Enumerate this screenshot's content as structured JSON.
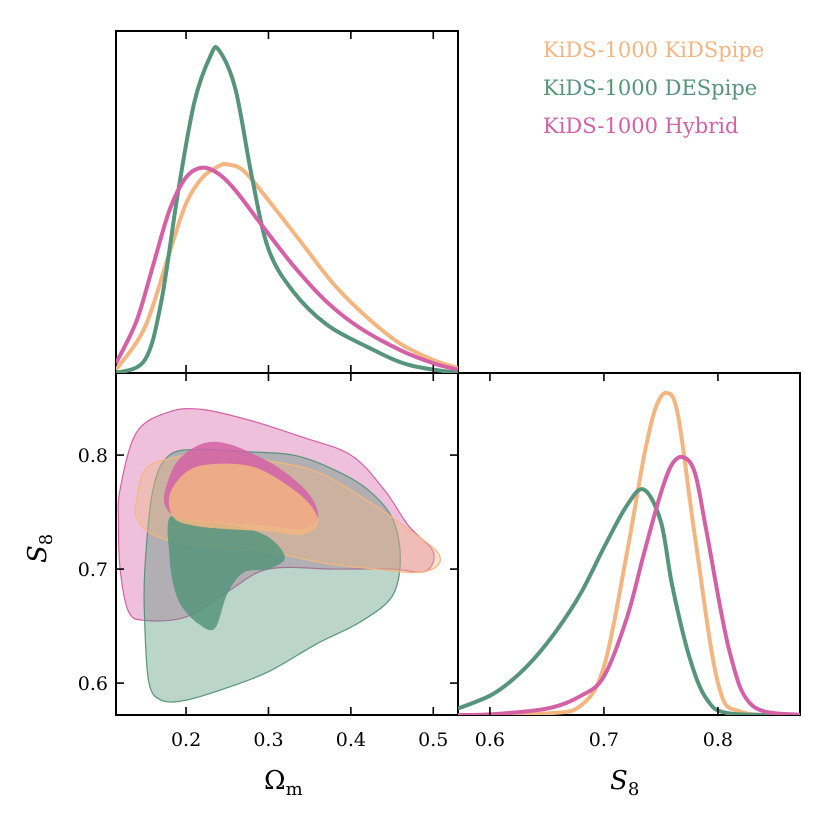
{
  "chart_data": {
    "type": "triangle",
    "title": "",
    "series": [
      {
        "name": "KiDS-1000 KiDSpipe",
        "color": "#f3b681"
      },
      {
        "name": "KiDS-1000 DESpipe",
        "color": "#56957b"
      },
      {
        "name": "KiDS-1000 Hybrid",
        "color": "#d461a6"
      }
    ],
    "xlabel_om": "Ω",
    "xlabel_om_sub": "m",
    "ylabel_s8": "S",
    "ylabel_s8_sub": "8",
    "om_range": [
      0.115,
      0.53
    ],
    "s8_range": [
      0.572,
      0.872
    ],
    "om_ticks": [
      0.2,
      0.3,
      0.4,
      0.5
    ],
    "om_tick_labels": [
      "0.2",
      "0.3",
      "0.4",
      "0.5"
    ],
    "s8_ticks_y": [
      0.6,
      0.7,
      0.8
    ],
    "s8_tick_labels_y": [
      "0.6",
      "0.7",
      "0.8"
    ],
    "s8_ticks_x": [
      0.6,
      0.7,
      0.8
    ],
    "s8_tick_labels_x": [
      "0.6",
      "0.7",
      "0.8"
    ],
    "s8_x_range": [
      0.572,
      0.872
    ],
    "marginal_om": [
      {
        "name": "KiDS-1000 KiDSpipe",
        "om": [
          0.115,
          0.15,
          0.18,
          0.2,
          0.22,
          0.24,
          0.25,
          0.27,
          0.3,
          0.34,
          0.38,
          0.42,
          0.46,
          0.5,
          0.53
        ],
        "density": [
          0.01,
          0.14,
          0.37,
          0.52,
          0.6,
          0.635,
          0.64,
          0.62,
          0.53,
          0.4,
          0.27,
          0.17,
          0.09,
          0.04,
          0.015
        ]
      },
      {
        "name": "KiDS-1000 DESpipe",
        "om": [
          0.115,
          0.15,
          0.17,
          0.19,
          0.21,
          0.23,
          0.24,
          0.26,
          0.28,
          0.3,
          0.33,
          0.37,
          0.42,
          0.47,
          0.53
        ],
        "density": [
          0.0,
          0.04,
          0.22,
          0.55,
          0.83,
          0.975,
          0.99,
          0.87,
          0.6,
          0.38,
          0.25,
          0.15,
          0.08,
          0.025,
          0.0
        ]
      },
      {
        "name": "KiDS-1000 Hybrid",
        "om": [
          0.115,
          0.14,
          0.16,
          0.18,
          0.2,
          0.22,
          0.24,
          0.26,
          0.29,
          0.33,
          0.37,
          0.41,
          0.46,
          0.5,
          0.53
        ],
        "density": [
          0.03,
          0.16,
          0.33,
          0.5,
          0.6,
          0.63,
          0.61,
          0.56,
          0.46,
          0.33,
          0.22,
          0.14,
          0.07,
          0.03,
          0.01
        ]
      }
    ],
    "marginal_s8": [
      {
        "name": "KiDS-1000 KiDSpipe",
        "s8": [
          0.572,
          0.65,
          0.68,
          0.7,
          0.72,
          0.735,
          0.745,
          0.755,
          0.765,
          0.78,
          0.8,
          0.82,
          0.872
        ],
        "density": [
          0.0,
          0.005,
          0.03,
          0.15,
          0.5,
          0.8,
          0.95,
          1.0,
          0.93,
          0.55,
          0.1,
          0.01,
          0.0
        ]
      },
      {
        "name": "KiDS-1000 DESpipe",
        "s8": [
          0.572,
          0.6,
          0.62,
          0.64,
          0.66,
          0.68,
          0.7,
          0.72,
          0.735,
          0.75,
          0.76,
          0.775,
          0.79,
          0.81,
          0.872
        ],
        "density": [
          0.02,
          0.06,
          0.11,
          0.18,
          0.27,
          0.38,
          0.52,
          0.65,
          0.7,
          0.6,
          0.4,
          0.18,
          0.05,
          0.005,
          0.0
        ]
      },
      {
        "name": "KiDS-1000 Hybrid",
        "s8": [
          0.572,
          0.6,
          0.65,
          0.68,
          0.7,
          0.72,
          0.735,
          0.75,
          0.76,
          0.77,
          0.78,
          0.79,
          0.81,
          0.83,
          0.872
        ],
        "density": [
          0.0,
          0.002,
          0.02,
          0.06,
          0.12,
          0.3,
          0.5,
          0.69,
          0.78,
          0.8,
          0.75,
          0.57,
          0.2,
          0.03,
          0.0
        ]
      }
    ],
    "contours": [
      {
        "name": "KiDS-1000 Hybrid",
        "level": "95%",
        "points": [
          [
            0.12,
            0.77
          ],
          [
            0.14,
            0.82
          ],
          [
            0.18,
            0.838
          ],
          [
            0.22,
            0.84
          ],
          [
            0.28,
            0.83
          ],
          [
            0.34,
            0.816
          ],
          [
            0.4,
            0.8
          ],
          [
            0.44,
            0.77
          ],
          [
            0.47,
            0.738
          ],
          [
            0.5,
            0.715
          ],
          [
            0.49,
            0.698
          ],
          [
            0.45,
            0.7
          ],
          [
            0.38,
            0.7
          ],
          [
            0.3,
            0.7
          ],
          [
            0.25,
            0.68
          ],
          [
            0.2,
            0.658
          ],
          [
            0.15,
            0.655
          ],
          [
            0.13,
            0.663
          ],
          [
            0.12,
            0.7
          ],
          [
            0.118,
            0.74
          ]
        ]
      },
      {
        "name": "KiDS-1000 DESpipe",
        "level": "95%",
        "points": [
          [
            0.15,
            0.7
          ],
          [
            0.16,
            0.77
          ],
          [
            0.18,
            0.8
          ],
          [
            0.22,
            0.805
          ],
          [
            0.27,
            0.803
          ],
          [
            0.33,
            0.8
          ],
          [
            0.38,
            0.787
          ],
          [
            0.42,
            0.77
          ],
          [
            0.45,
            0.745
          ],
          [
            0.46,
            0.71
          ],
          [
            0.45,
            0.676
          ],
          [
            0.41,
            0.653
          ],
          [
            0.36,
            0.635
          ],
          [
            0.3,
            0.61
          ],
          [
            0.25,
            0.596
          ],
          [
            0.2,
            0.585
          ],
          [
            0.17,
            0.585
          ],
          [
            0.155,
            0.6
          ],
          [
            0.15,
            0.65
          ]
        ]
      },
      {
        "name": "KiDS-1000 KiDSpipe",
        "level": "95%",
        "points": [
          [
            0.14,
            0.76
          ],
          [
            0.15,
            0.787
          ],
          [
            0.18,
            0.797
          ],
          [
            0.23,
            0.802
          ],
          [
            0.3,
            0.795
          ],
          [
            0.36,
            0.785
          ],
          [
            0.42,
            0.76
          ],
          [
            0.47,
            0.735
          ],
          [
            0.505,
            0.715
          ],
          [
            0.505,
            0.703
          ],
          [
            0.48,
            0.697
          ],
          [
            0.43,
            0.7
          ],
          [
            0.37,
            0.705
          ],
          [
            0.3,
            0.715
          ],
          [
            0.25,
            0.718
          ],
          [
            0.2,
            0.722
          ],
          [
            0.16,
            0.73
          ],
          [
            0.14,
            0.745
          ]
        ]
      },
      {
        "name": "KiDS-1000 Hybrid",
        "level": "68%",
        "points": [
          [
            0.175,
            0.77
          ],
          [
            0.19,
            0.795
          ],
          [
            0.22,
            0.81
          ],
          [
            0.25,
            0.81
          ],
          [
            0.29,
            0.798
          ],
          [
            0.32,
            0.785
          ],
          [
            0.35,
            0.765
          ],
          [
            0.36,
            0.745
          ],
          [
            0.34,
            0.735
          ],
          [
            0.3,
            0.738
          ],
          [
            0.26,
            0.74
          ],
          [
            0.22,
            0.742
          ],
          [
            0.19,
            0.745
          ],
          [
            0.175,
            0.755
          ]
        ]
      },
      {
        "name": "KiDS-1000 DESpipe",
        "level": "68%",
        "points": [
          [
            0.18,
            0.745
          ],
          [
            0.21,
            0.742
          ],
          [
            0.26,
            0.738
          ],
          [
            0.3,
            0.728
          ],
          [
            0.32,
            0.71
          ],
          [
            0.3,
            0.7
          ],
          [
            0.27,
            0.697
          ],
          [
            0.25,
            0.678
          ],
          [
            0.235,
            0.648
          ],
          [
            0.215,
            0.652
          ],
          [
            0.195,
            0.667
          ],
          [
            0.185,
            0.685
          ],
          [
            0.18,
            0.71
          ]
        ]
      },
      {
        "name": "KiDS-1000 KiDSpipe",
        "level": "68%",
        "points": [
          [
            0.18,
            0.765
          ],
          [
            0.2,
            0.785
          ],
          [
            0.23,
            0.792
          ],
          [
            0.28,
            0.79
          ],
          [
            0.32,
            0.775
          ],
          [
            0.35,
            0.757
          ],
          [
            0.36,
            0.74
          ],
          [
            0.34,
            0.73
          ],
          [
            0.3,
            0.733
          ],
          [
            0.25,
            0.735
          ],
          [
            0.21,
            0.738
          ],
          [
            0.185,
            0.745
          ]
        ]
      }
    ]
  }
}
